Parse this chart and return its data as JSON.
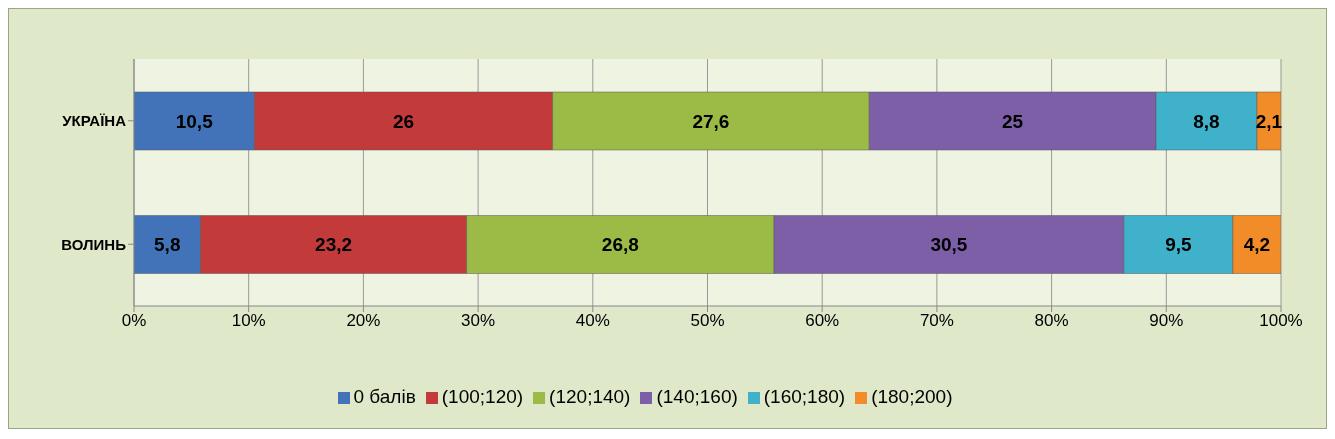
{
  "chart_data": {
    "type": "bar",
    "orientation": "horizontal",
    "stacked": true,
    "categories": [
      "УКРАЇНА",
      "ВОЛИНЬ"
    ],
    "series": [
      {
        "name": "0 балів",
        "color": "#4273b8",
        "values": [
          10.5,
          5.8
        ],
        "value_labels": [
          "10,5",
          "5,8"
        ]
      },
      {
        "name": "(100;120)",
        "color": "#c23b3a",
        "values": [
          26,
          23.2
        ],
        "value_labels": [
          "26",
          "23,2"
        ]
      },
      {
        "name": "(120;140)",
        "color": "#9bbb46",
        "values": [
          27.6,
          26.8
        ],
        "value_labels": [
          "27,6",
          "26,8"
        ]
      },
      {
        "name": "(140;160)",
        "color": "#7d5fa8",
        "values": [
          25,
          30.5
        ],
        "value_labels": [
          "25",
          "30,5"
        ]
      },
      {
        "name": "(160;180)",
        "color": "#3fb1cb",
        "values": [
          8.8,
          9.5
        ],
        "value_labels": [
          "8,8",
          "9,5"
        ]
      },
      {
        "name": "(180;200)",
        "color": "#f28c28",
        "values": [
          2.1,
          4.2
        ],
        "value_labels": [
          "2,1",
          "4,2"
        ]
      }
    ],
    "xlim": [
      0,
      100
    ],
    "xticks": [
      {
        "value": 0,
        "label": "0%"
      },
      {
        "value": 10,
        "label": "10%"
      },
      {
        "value": 20,
        "label": "20%"
      },
      {
        "value": 30,
        "label": "30%"
      },
      {
        "value": 40,
        "label": "40%"
      },
      {
        "value": 50,
        "label": "50%"
      },
      {
        "value": 60,
        "label": "60%"
      },
      {
        "value": 70,
        "label": "70%"
      },
      {
        "value": 80,
        "label": "80%"
      },
      {
        "value": 90,
        "label": "90%"
      },
      {
        "value": 100,
        "label": "100%"
      }
    ],
    "grid": "x",
    "legend": "bottom"
  }
}
